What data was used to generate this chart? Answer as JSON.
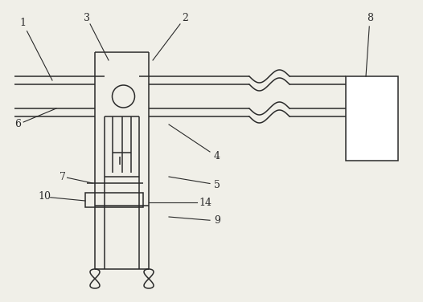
{
  "bg_color": "#f0efe8",
  "line_color": "#2a2a2a",
  "lw": 1.1,
  "fig_width": 5.26,
  "fig_height": 3.76,
  "dpi": 100
}
